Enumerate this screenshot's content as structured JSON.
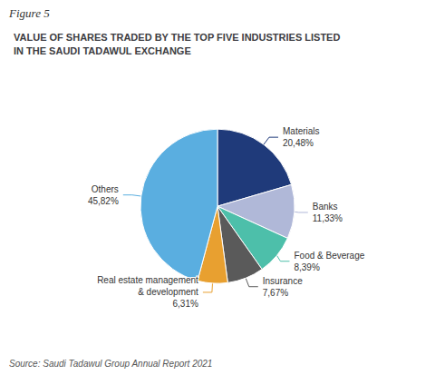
{
  "chart_data": {
    "type": "pie",
    "title": "VALUE OF SHARES TRADED BY THE TOP FIVE INDUSTRIES LISTED\nIN THE SAUDI TADAWUL EXCHANGE",
    "annotations": [
      "Figure 5",
      "Source: Saudi Tadawul Group Annual Report 2021"
    ],
    "categories": [
      "Materials",
      "Banks",
      "Food & Beverage",
      "Insurance",
      "Real estate management\n& development",
      "Others"
    ],
    "values": [
      20.48,
      11.33,
      8.39,
      7.67,
      6.31,
      45.82
    ],
    "value_labels": [
      "20,48%",
      "11,33%",
      "8,39%",
      "7,67%",
      "6,31%",
      "45,82%"
    ],
    "colors": [
      "#1f3a7a",
      "#b0b8d8",
      "#4dbfaa",
      "#5a5a5a",
      "#e8a030",
      "#5aaee0"
    ],
    "data_labels": true
  }
}
